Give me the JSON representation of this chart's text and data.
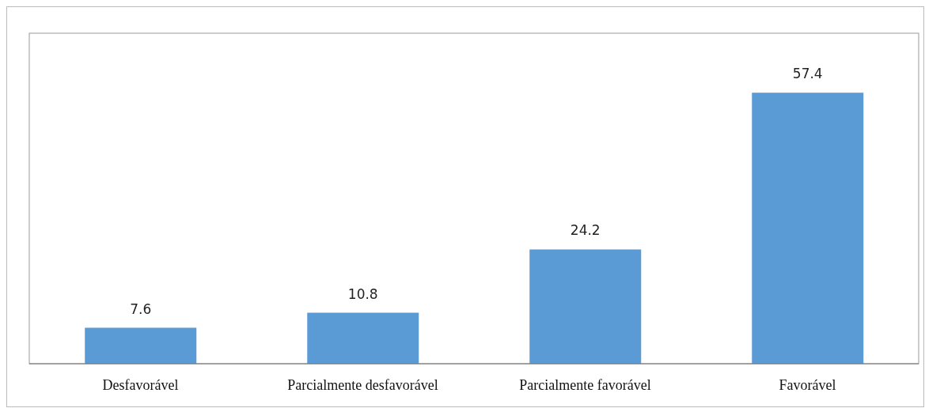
{
  "chart_data": {
    "type": "bar",
    "categories": [
      "Desfavorável",
      "Parcialmente desfavorável",
      "Parcialmente favorável",
      "Favorável"
    ],
    "values": [
      7.6,
      10.8,
      24.2,
      57.4
    ],
    "color": "#5b9bd5",
    "ylim": [
      0,
      70
    ],
    "tick_labels": "x",
    "data_labels": true,
    "grid": false
  }
}
